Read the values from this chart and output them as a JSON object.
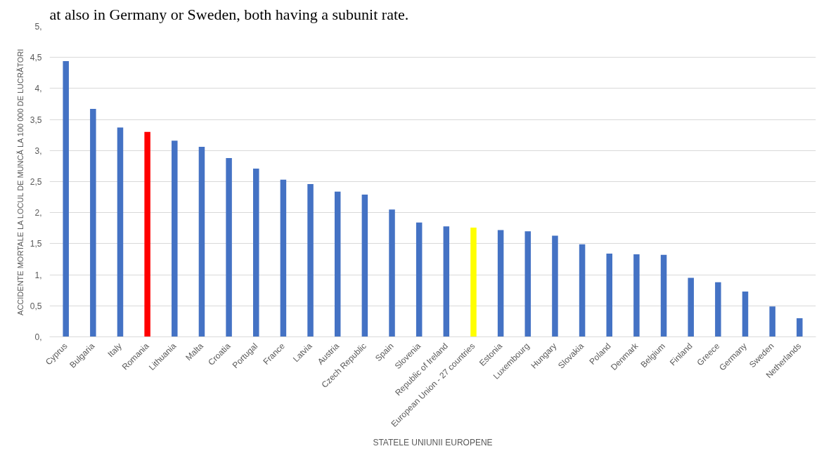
{
  "chart_data": {
    "type": "bar",
    "annotations": [
      "at also in Germany or Sweden, both having a subunit rate."
    ],
    "xlabel": "STATELE UNIUNII EUROPENE",
    "ylabel": "ACCIDENTE MORTALE LA LOCUL DE MUNCĂ LA 100 000 DE LUCRĂTORI",
    "categories": [
      "Cyprus",
      "Bulgaria",
      "Italy",
      "Romania",
      "Lithuania",
      "Malta",
      "Croatia",
      "Portugal",
      "France",
      "Latvia",
      "Austria",
      "Czech Republic",
      "Spain",
      "Slovenia",
      "Republic of Ireland",
      "European Union - 27 countries",
      "Estonia",
      "Luxembourg",
      "Hungary",
      "Slovakia",
      "Poland",
      "Denmark",
      "Belgium",
      "Finland",
      "Greece",
      "Germany",
      "Sweden",
      "Netherlands"
    ],
    "values": [
      4.44,
      3.67,
      3.37,
      3.3,
      3.16,
      3.06,
      2.88,
      2.71,
      2.53,
      2.46,
      2.34,
      2.29,
      2.05,
      1.84,
      1.78,
      1.76,
      1.72,
      1.7,
      1.63,
      1.49,
      1.34,
      1.33,
      1.32,
      0.95,
      0.88,
      0.73,
      0.49,
      0.3
    ],
    "colors": [
      "#4472c4",
      "#4472c4",
      "#4472c4",
      "#ff0000",
      "#4472c4",
      "#4472c4",
      "#4472c4",
      "#4472c4",
      "#4472c4",
      "#4472c4",
      "#4472c4",
      "#4472c4",
      "#4472c4",
      "#4472c4",
      "#4472c4",
      "#ffff00",
      "#4472c4",
      "#4472c4",
      "#4472c4",
      "#4472c4",
      "#4472c4",
      "#4472c4",
      "#4472c4",
      "#4472c4",
      "#4472c4",
      "#4472c4",
      "#4472c4",
      "#4472c4"
    ],
    "ylim": [
      0,
      5
    ],
    "yticks": [
      {
        "value": 0,
        "label": "0,"
      },
      {
        "value": 0.5,
        "label": "0,5"
      },
      {
        "value": 1,
        "label": "1,"
      },
      {
        "value": 1.5,
        "label": "1,5"
      },
      {
        "value": 2,
        "label": "2,"
      },
      {
        "value": 2.5,
        "label": "2,5"
      },
      {
        "value": 3,
        "label": "3,"
      },
      {
        "value": 3.5,
        "label": "3,5"
      },
      {
        "value": 4,
        "label": "4,"
      },
      {
        "value": 4.5,
        "label": "4,5"
      },
      {
        "value": 5,
        "label": "5,"
      }
    ],
    "grid": "y"
  }
}
